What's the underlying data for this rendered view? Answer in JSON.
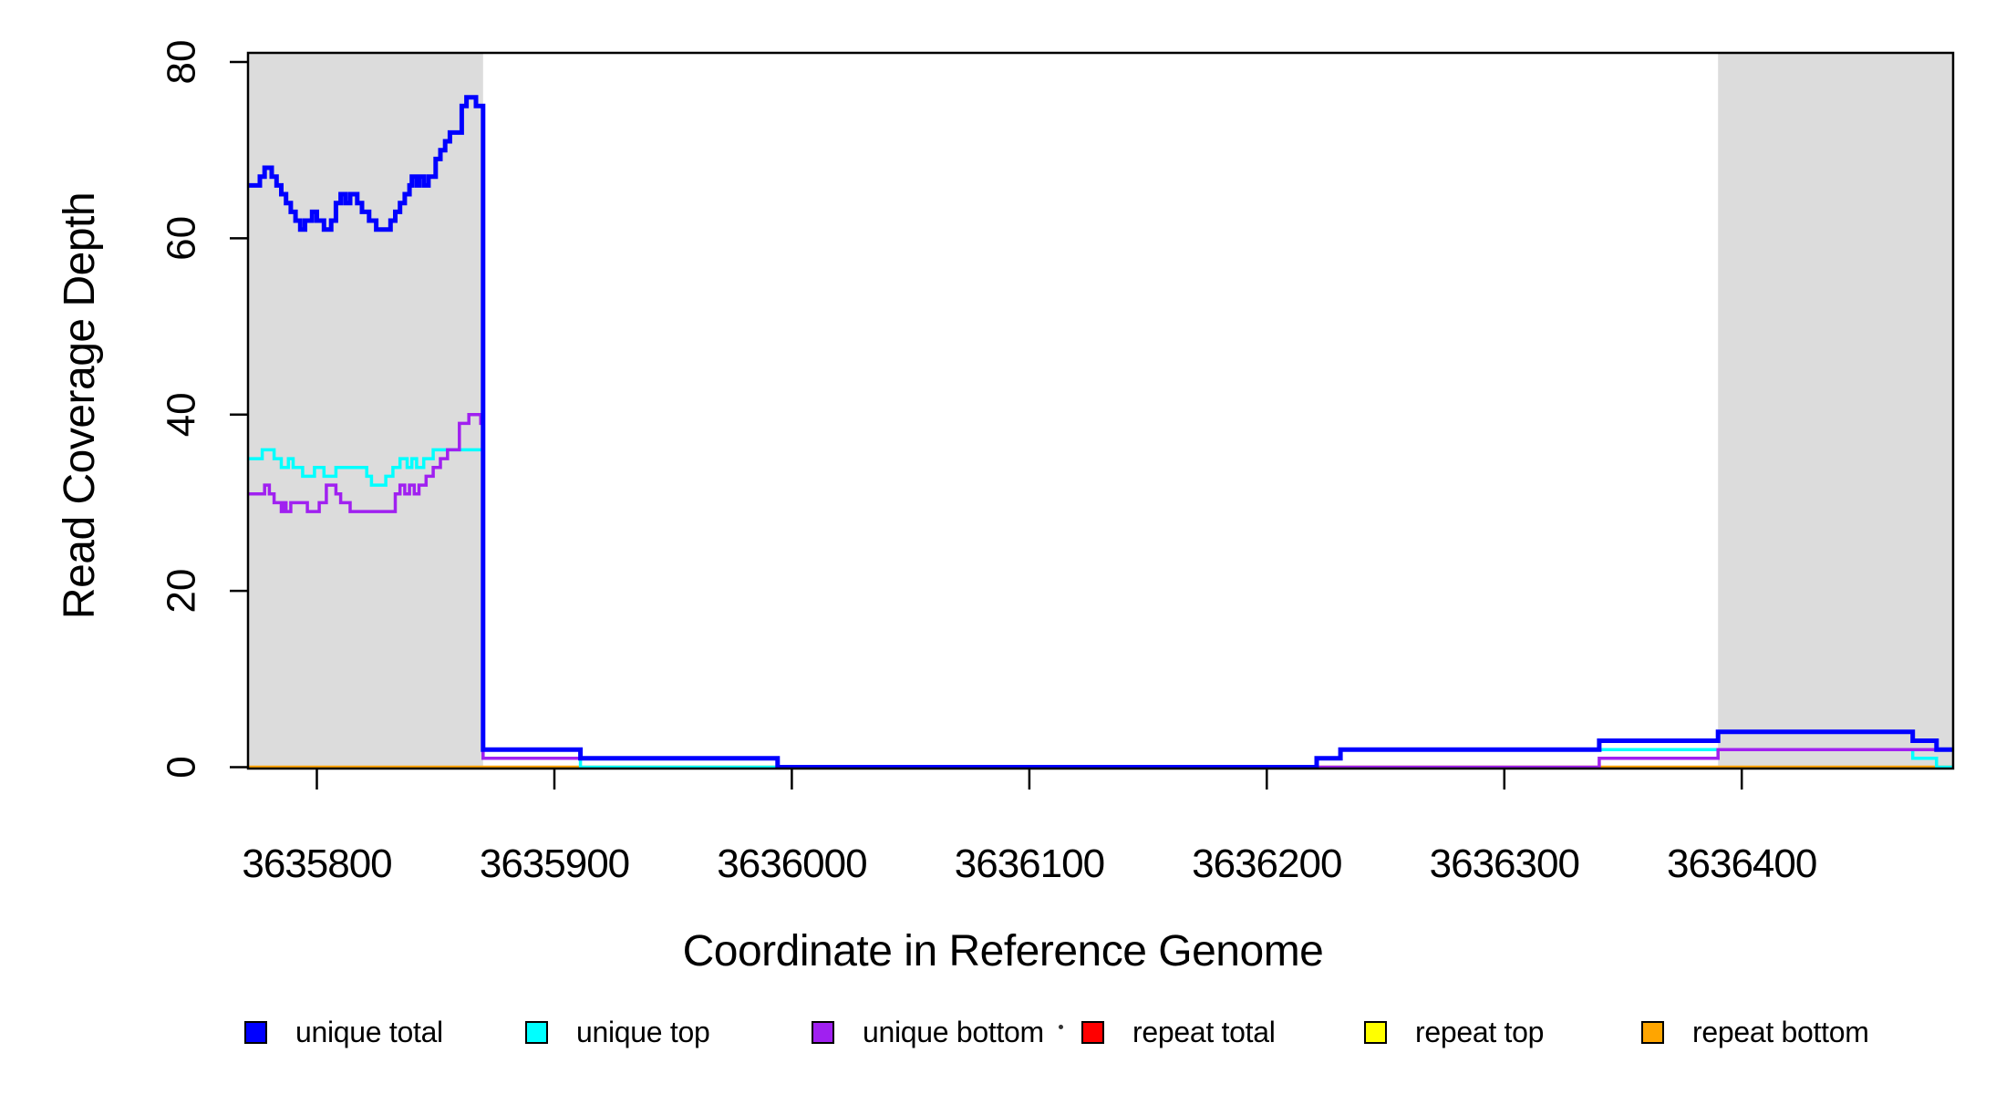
{
  "chart_data": {
    "type": "line",
    "subtype": "step-after",
    "title": "",
    "xlabel": "Coordinate in Reference Genome",
    "ylabel": "Read Coverage Depth",
    "xlim": [
      3635771,
      3636489
    ],
    "ylim": [
      0,
      80
    ],
    "x_ticks": [
      3635800,
      3635900,
      3636000,
      3636100,
      3636200,
      3636300,
      3636400
    ],
    "y_ticks": [
      0,
      20,
      40,
      60,
      80
    ],
    "grid": false,
    "axis_color": "#000000",
    "shade_color": "#DCDCDC",
    "shaded_regions": [
      {
        "x0": 3635771,
        "x1": 3635870
      },
      {
        "x0": 3636390,
        "x1": 3636489
      }
    ],
    "draw_order": [
      "repeat total",
      "repeat top",
      "repeat bottom",
      "unique top",
      "unique bottom",
      "unique total"
    ],
    "series": [
      {
        "name": "unique total",
        "color": "#0000FF",
        "lwd": 5,
        "steps": [
          [
            3635771,
            66
          ],
          [
            3635776,
            67
          ],
          [
            3635778,
            68
          ],
          [
            3635781,
            67
          ],
          [
            3635783,
            66
          ],
          [
            3635785,
            65
          ],
          [
            3635787,
            64
          ],
          [
            3635789,
            63
          ],
          [
            3635791,
            62
          ],
          [
            3635793,
            61
          ],
          [
            3635795,
            62
          ],
          [
            3635798,
            63
          ],
          [
            3635800,
            62
          ],
          [
            3635803,
            61
          ],
          [
            3635806,
            62
          ],
          [
            3635808,
            64
          ],
          [
            3635810,
            65
          ],
          [
            3635812,
            64
          ],
          [
            3635814,
            65
          ],
          [
            3635817,
            64
          ],
          [
            3635819,
            63
          ],
          [
            3635822,
            62
          ],
          [
            3635825,
            61
          ],
          [
            3635831,
            62
          ],
          [
            3635833,
            63
          ],
          [
            3635835,
            64
          ],
          [
            3635837,
            65
          ],
          [
            3635839,
            66
          ],
          [
            3635840,
            67
          ],
          [
            3635842,
            66
          ],
          [
            3635843,
            67
          ],
          [
            3635845,
            66
          ],
          [
            3635847,
            67
          ],
          [
            3635850,
            69
          ],
          [
            3635852,
            70
          ],
          [
            3635854,
            71
          ],
          [
            3635856,
            72
          ],
          [
            3635861,
            75
          ],
          [
            3635863,
            76
          ],
          [
            3635867,
            75
          ],
          [
            3635870,
            2
          ],
          [
            3635911,
            1
          ],
          [
            3635994,
            0
          ],
          [
            3636221,
            1
          ],
          [
            3636231,
            2
          ],
          [
            3636340,
            3
          ],
          [
            3636390,
            4
          ],
          [
            3636472,
            3
          ],
          [
            3636482,
            2
          ]
        ]
      },
      {
        "name": "unique top",
        "color": "#00FFFF",
        "lwd": 3.5,
        "steps": [
          [
            3635771,
            35
          ],
          [
            3635777,
            36
          ],
          [
            3635782,
            35
          ],
          [
            3635785,
            34
          ],
          [
            3635788,
            35
          ],
          [
            3635790,
            34
          ],
          [
            3635794,
            33
          ],
          [
            3635799,
            34
          ],
          [
            3635803,
            33
          ],
          [
            3635808,
            34
          ],
          [
            3635821,
            33
          ],
          [
            3635823,
            32
          ],
          [
            3635829,
            33
          ],
          [
            3635832,
            34
          ],
          [
            3635835,
            35
          ],
          [
            3635838,
            34
          ],
          [
            3635840,
            35
          ],
          [
            3635842,
            34
          ],
          [
            3635845,
            35
          ],
          [
            3635849,
            36
          ],
          [
            3635870,
            1
          ],
          [
            3635911,
            0
          ],
          [
            3636221,
            1
          ],
          [
            3636231,
            2
          ],
          [
            3636472,
            1
          ],
          [
            3636482,
            0
          ]
        ]
      },
      {
        "name": "unique bottom",
        "color": "#A020F0",
        "lwd": 3.5,
        "steps": [
          [
            3635771,
            31
          ],
          [
            3635778,
            32
          ],
          [
            3635780,
            31
          ],
          [
            3635782,
            30
          ],
          [
            3635785,
            29
          ],
          [
            3635786,
            30
          ],
          [
            3635787,
            29
          ],
          [
            3635789,
            30
          ],
          [
            3635796,
            29
          ],
          [
            3635801,
            30
          ],
          [
            3635804,
            32
          ],
          [
            3635808,
            31
          ],
          [
            3635810,
            30
          ],
          [
            3635814,
            29
          ],
          [
            3635833,
            31
          ],
          [
            3635835,
            32
          ],
          [
            3635837,
            31
          ],
          [
            3635839,
            32
          ],
          [
            3635841,
            31
          ],
          [
            3635843,
            32
          ],
          [
            3635846,
            33
          ],
          [
            3635849,
            34
          ],
          [
            3635852,
            35
          ],
          [
            3635855,
            36
          ],
          [
            3635860,
            39
          ],
          [
            3635864,
            40
          ],
          [
            3635869,
            39
          ],
          [
            3635870,
            1
          ],
          [
            3635994,
            0
          ],
          [
            3636340,
            1
          ],
          [
            3636390,
            2
          ]
        ]
      },
      {
        "name": "repeat total",
        "color": "#FF0000",
        "lwd": 3,
        "steps": [
          [
            3635771,
            0
          ]
        ]
      },
      {
        "name": "repeat top",
        "color": "#FFFF00",
        "lwd": 3,
        "steps": [
          [
            3635771,
            0
          ]
        ]
      },
      {
        "name": "repeat bottom",
        "color": "#FFA500",
        "lwd": 3.5,
        "steps": [
          [
            3635771,
            0
          ]
        ]
      }
    ],
    "legend": {
      "position": "bottom",
      "items": [
        {
          "label": "unique total",
          "color": "#0000FF"
        },
        {
          "label": "unique top",
          "color": "#00FFFF"
        },
        {
          "label": "unique bottom",
          "color": "#A020F0"
        },
        {
          "label": "repeat total",
          "color": "#FF0000"
        },
        {
          "label": "repeat top",
          "color": "#FFFF00"
        },
        {
          "label": "repeat bottom",
          "color": "#FFA500"
        }
      ]
    }
  }
}
